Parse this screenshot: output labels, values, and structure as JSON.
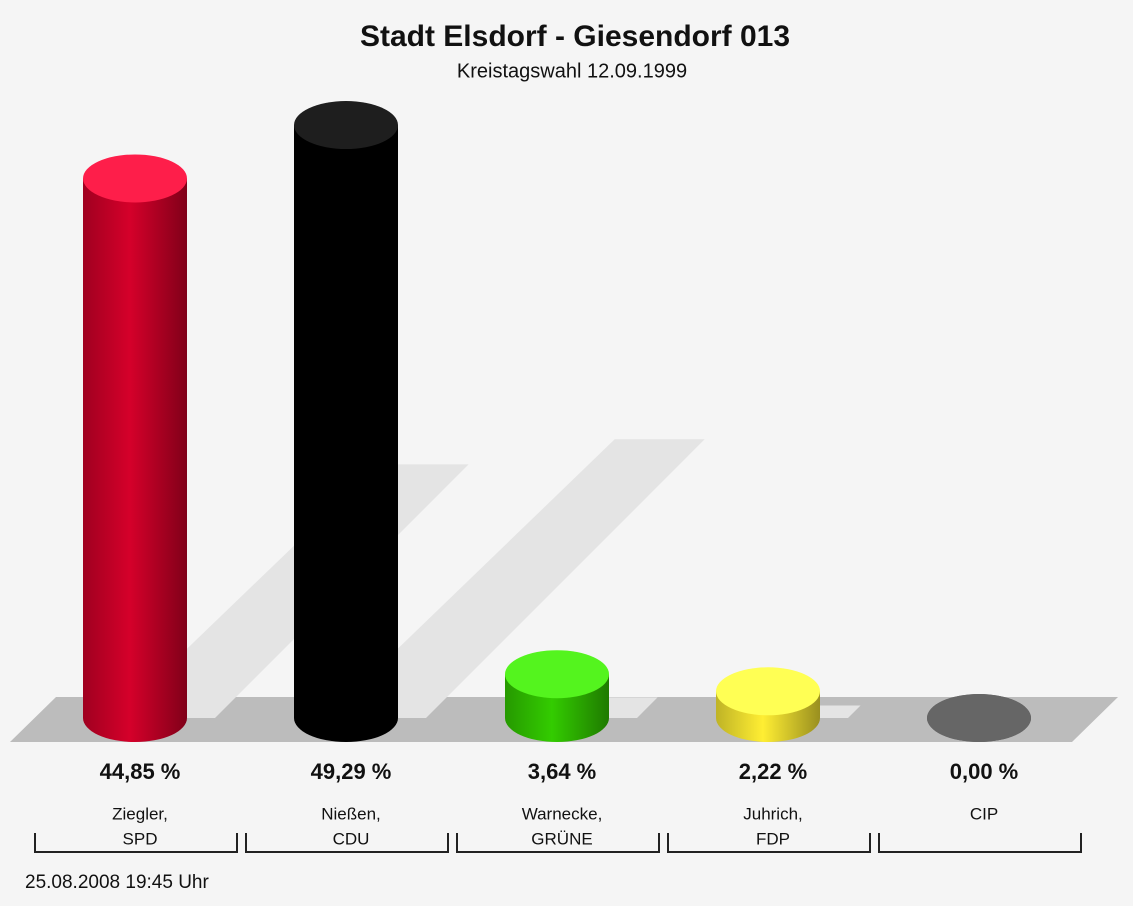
{
  "chart_data": {
    "type": "bar",
    "title": "Stadt Elsdorf - Giesendorf 013",
    "subtitle": "Kreistagswahl 12.09.1999",
    "categories": [
      [
        "Ziegler,",
        "SPD"
      ],
      [
        "Nießen,",
        "CDU"
      ],
      [
        "Warnecke,",
        "GRÜNE"
      ],
      [
        "Juhrich,",
        "FDP"
      ],
      [
        "CIP"
      ]
    ],
    "values": [
      44.85,
      49.29,
      3.64,
      2.22,
      0.0
    ],
    "value_labels": [
      "44,85 %",
      "49,29 %",
      "3,64 %",
      "2,22 %",
      "0,00 %"
    ],
    "colors": [
      "#d5002a",
      "#000000",
      "#33cc00",
      "#ffee33",
      "#666666"
    ],
    "footnote": "25.08.2008 19:45 Uhr"
  }
}
